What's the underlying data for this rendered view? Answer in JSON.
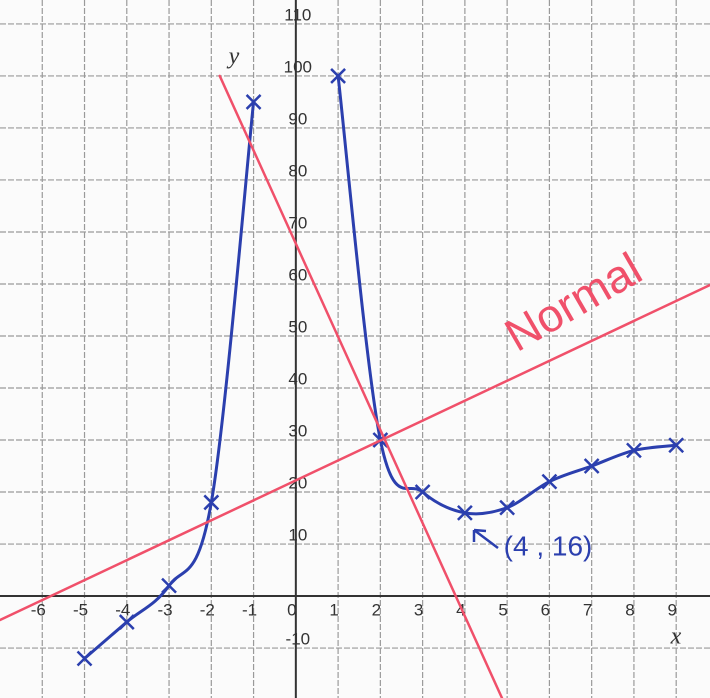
{
  "chart_data": {
    "type": "line",
    "xlim": [
      -7,
      9.8
    ],
    "ylim": [
      -19.6,
      114.6
    ],
    "xticks": [
      -6,
      -5,
      -4,
      -3,
      -2,
      -1,
      0,
      1,
      2,
      3,
      4,
      5,
      6,
      7,
      8,
      9
    ],
    "yticks": [
      -10,
      10,
      20,
      30,
      40,
      50,
      60,
      70,
      80,
      90,
      100,
      110
    ],
    "grid": true,
    "x_label": "x",
    "y_label": "y",
    "series": [
      {
        "color": "#2b3fae",
        "markers": true,
        "x": [
          -5,
          -4,
          -3,
          -2,
          -1
        ],
        "values": [
          -12,
          -5,
          2,
          18,
          95
        ]
      },
      {
        "color": "#2b3fae",
        "markers": true,
        "x": [
          1,
          2,
          3,
          4,
          5,
          6,
          7,
          8,
          9
        ],
        "values": [
          100,
          30,
          20,
          16,
          17,
          22,
          25,
          28,
          29
        ]
      },
      {
        "color": "#f0506a",
        "markers": false,
        "x": [
          -1.8,
          4.9
        ],
        "values": [
          100,
          -20
        ]
      },
      {
        "color": "#f0506a",
        "markers": false,
        "x": [
          -7,
          9.8
        ],
        "values": [
          -4.6,
          59.8
        ]
      }
    ],
    "annotations": [
      "Normal",
      "(4 , 16)"
    ]
  }
}
